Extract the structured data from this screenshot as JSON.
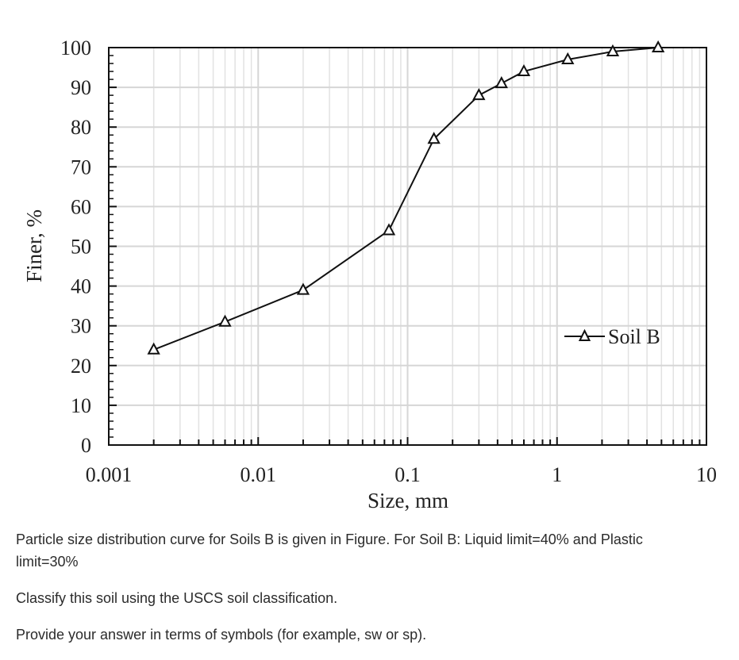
{
  "chart_data": {
    "type": "scatter",
    "mode": "lines+markers",
    "x_scale": "log",
    "xlabel": "Size, mm",
    "ylabel": "Finer, %",
    "xlim": [
      0.001,
      10
    ],
    "ylim": [
      0,
      100
    ],
    "x_ticks": [
      "0.001",
      "0.01",
      "0.1",
      "1",
      "10"
    ],
    "y_ticks": [
      "0",
      "10",
      "20",
      "30",
      "40",
      "50",
      "60",
      "70",
      "80",
      "90",
      "100"
    ],
    "grid": true,
    "legend_position": "right",
    "marker": "triangle",
    "series": [
      {
        "name": "Soil B",
        "color": "#111111",
        "x": [
          0.002,
          0.006,
          0.02,
          0.075,
          0.15,
          0.3,
          0.425,
          0.6,
          1.18,
          2.36,
          4.75
        ],
        "y": [
          24,
          31,
          39,
          54,
          77,
          88,
          91,
          94,
          97,
          99,
          100
        ]
      }
    ]
  },
  "question": {
    "paragraph1": "Particle size distribution curve for Soils B is given in Figure. For Soil B: Liquid limit=40% and Plastic limit=30%",
    "paragraph2": "Classify this soil using the USCS soil classification.",
    "paragraph3": "Provide your answer in terms of symbols (for example, sw or sp)."
  }
}
